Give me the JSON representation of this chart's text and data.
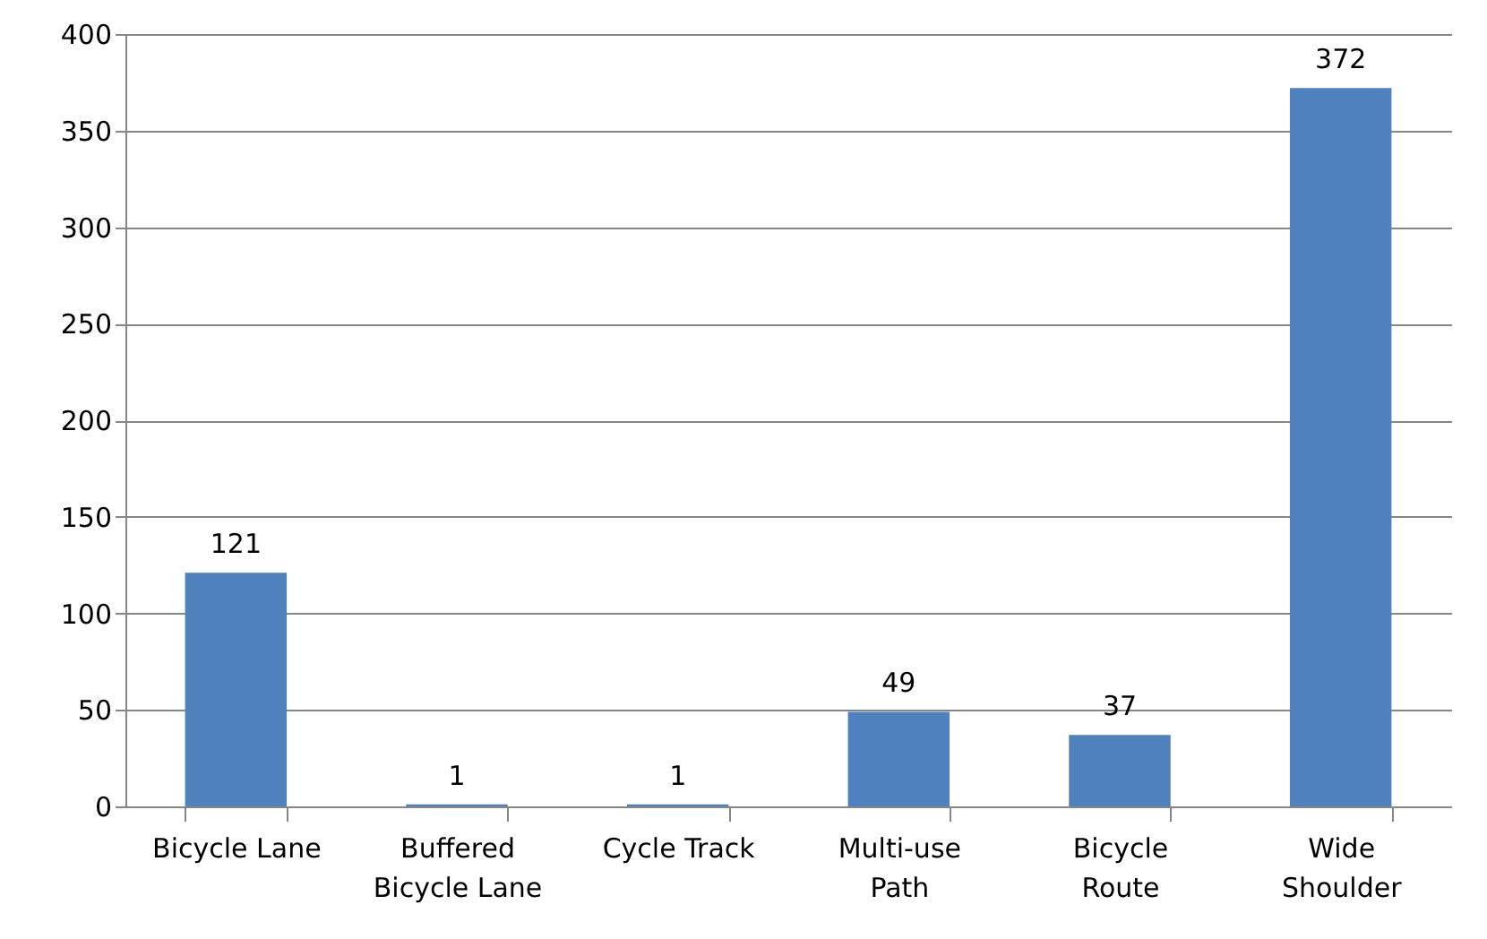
{
  "chart_data": {
    "type": "bar",
    "categories": [
      "Bicycle Lane",
      "Buffered\nBicycle Lane",
      "Cycle Track",
      "Multi-use\nPath",
      "Bicycle\nRoute",
      "Wide\nShoulder"
    ],
    "values": [
      121,
      1,
      1,
      49,
      37,
      372
    ],
    "color": "#4f81bd",
    "ylim": [
      0,
      400
    ],
    "yticks": [
      0,
      50,
      100,
      150,
      200,
      250,
      300,
      350,
      400
    ],
    "grid": "y",
    "data_labels": true
  }
}
